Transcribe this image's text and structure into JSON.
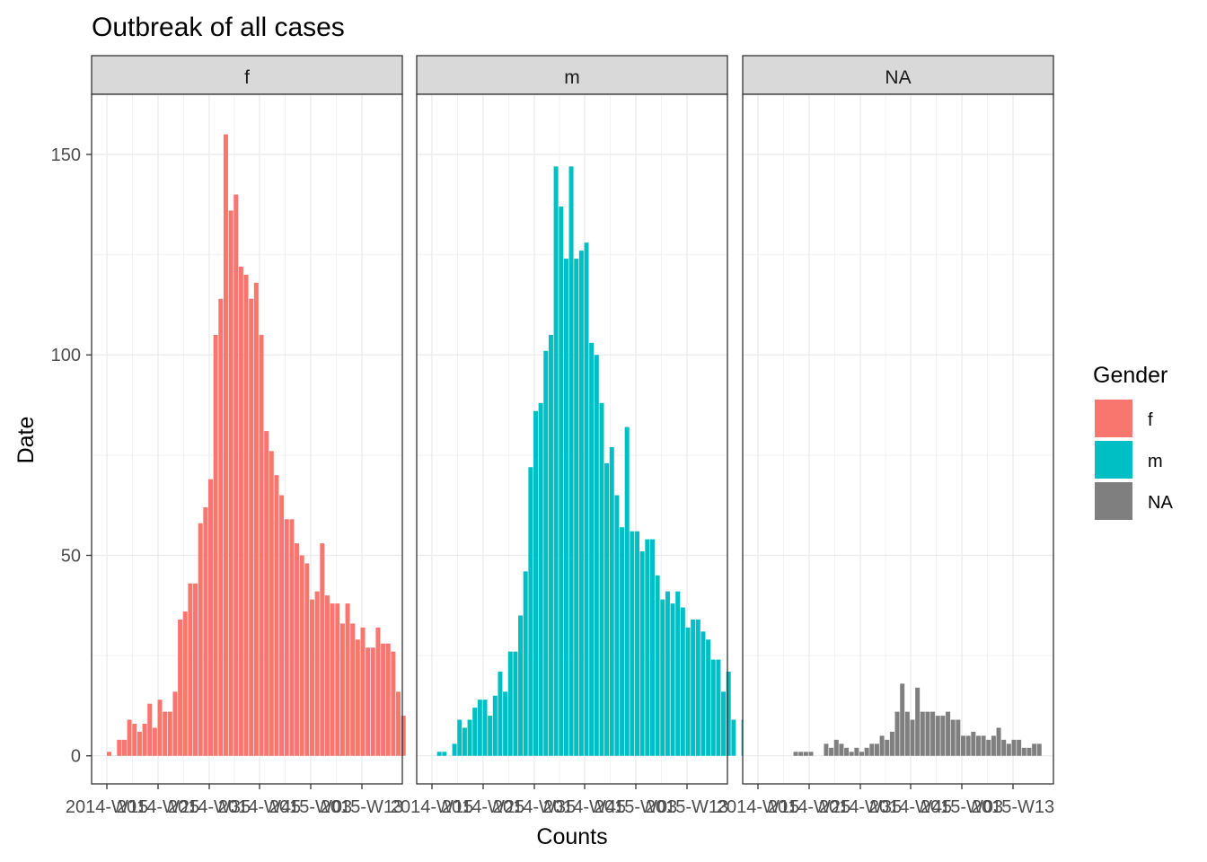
{
  "chart_data": {
    "type": "bar",
    "title": "Outbreak of all cases",
    "xlabel": "Counts",
    "ylabel": "Date",
    "ylim": [
      -7,
      165
    ],
    "y_ticks": [
      0,
      50,
      100,
      150
    ],
    "x_tick_labels": [
      "2014-W15",
      "2014-W25",
      "2014-W35",
      "2014-W45",
      "2015-W03",
      "2015-W13"
    ],
    "x_tick_labels_rendered": [
      "2014-W15",
      "2014-W25",
      "2014-W35",
      "2014-W45",
      "2015-W03",
      "2015-W13"
    ],
    "grid": true,
    "legend": {
      "title": "Gender",
      "position": "right",
      "entries": [
        {
          "label": "f",
          "color": "#F8766D"
        },
        {
          "label": "m",
          "color": "#00BFC4"
        },
        {
          "label": "NA",
          "color": "#7F7F7F"
        }
      ]
    },
    "panels": [
      {
        "name": "f",
        "color": "#F8766D",
        "values": [
          1,
          0,
          4,
          4,
          9,
          8,
          6,
          8,
          13,
          7,
          14,
          11,
          11,
          16,
          34,
          36,
          43,
          43,
          58,
          62,
          69,
          105,
          114,
          155,
          136,
          140,
          122,
          120,
          114,
          118,
          105,
          81,
          76,
          70,
          65,
          59,
          59,
          53,
          50,
          48,
          39,
          41,
          53,
          40,
          38,
          38,
          33,
          38,
          33,
          29,
          32,
          27,
          27,
          32,
          28,
          28,
          26,
          16,
          10
        ]
      },
      {
        "name": "m",
        "color": "#00BFC4",
        "values": [
          0,
          1,
          1,
          0,
          3,
          9,
          7,
          9,
          12,
          14,
          14,
          10,
          15,
          21,
          16,
          26,
          26,
          35,
          46,
          72,
          86,
          88,
          101,
          105,
          147,
          137,
          124,
          147,
          124,
          126,
          128,
          103,
          100,
          88,
          73,
          77,
          65,
          57,
          82,
          56,
          56,
          51,
          54,
          54,
          45,
          39,
          41,
          38,
          41,
          37,
          32,
          34,
          34,
          31,
          29,
          24,
          24,
          16,
          21,
          9,
          0,
          9
        ]
      },
      {
        "name": "NA",
        "color": "#7F7F7F",
        "values": [
          0,
          0,
          0,
          0,
          0,
          0,
          0,
          1,
          1,
          1,
          1,
          0,
          0,
          3,
          2,
          4,
          3,
          2,
          1,
          2,
          1,
          2,
          3,
          3,
          5,
          4,
          6,
          11,
          18,
          11,
          9,
          17,
          11,
          11,
          11,
          10,
          10,
          11,
          9,
          9,
          5,
          5,
          6,
          5,
          5,
          4,
          5,
          7,
          4,
          3,
          4,
          4,
          2,
          2,
          3,
          3
        ]
      }
    ]
  }
}
